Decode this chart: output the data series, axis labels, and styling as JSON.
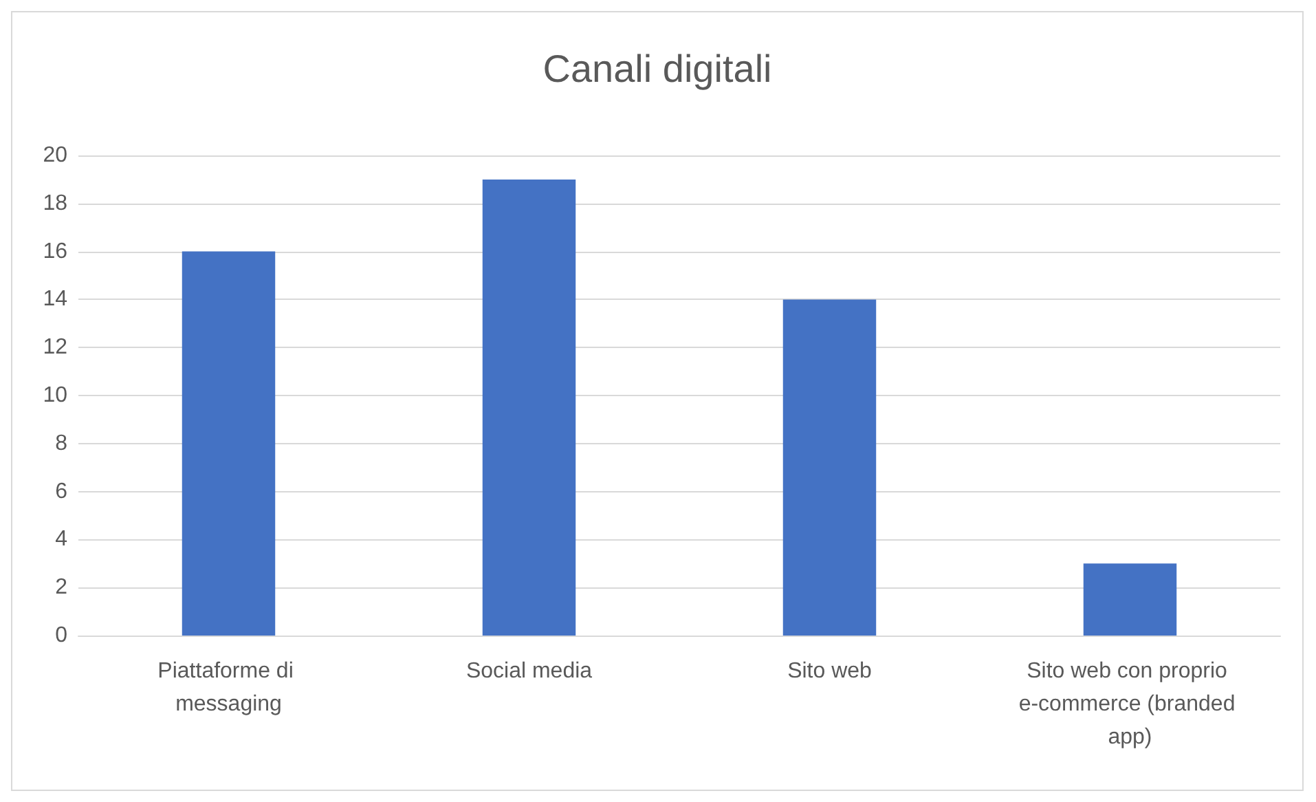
{
  "chart_data": {
    "type": "bar",
    "title": "Canali digitali",
    "categories": [
      "Piattaforme di messaging",
      "Social media",
      "Sito web",
      "Sito web con proprio e-commerce (branded app)"
    ],
    "values": [
      16,
      19,
      14,
      3
    ],
    "color": "#4472c4",
    "ylim": [
      0,
      20
    ],
    "yticks": [
      0,
      2,
      4,
      6,
      8,
      10,
      12,
      14,
      16,
      18,
      20
    ],
    "grid": "y"
  }
}
